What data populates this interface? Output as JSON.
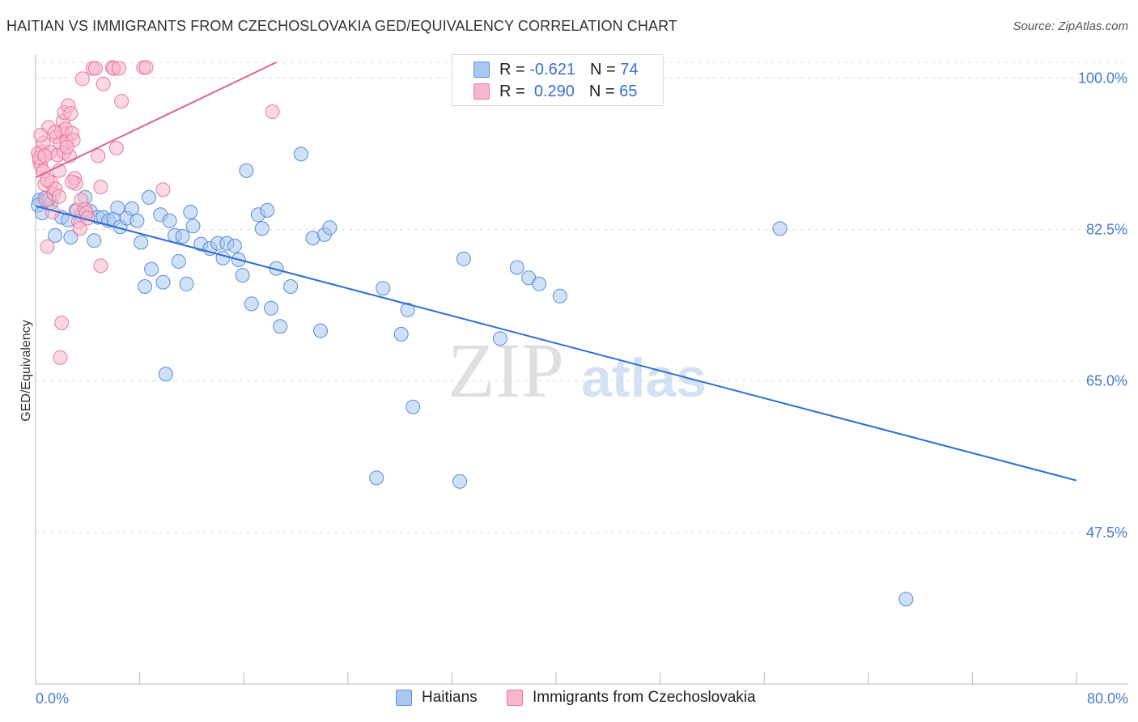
{
  "header": {
    "title": "HAITIAN VS IMMIGRANTS FROM CZECHOSLOVAKIA GED/EQUIVALENCY CORRELATION CHART",
    "source": "Source: ZipAtlas.com"
  },
  "legend": {
    "haitians": {
      "r_label": "R =",
      "r_value": "-0.621",
      "n_label": "N =",
      "n_value": "74"
    },
    "czech": {
      "r_label": "R =",
      "r_value": "0.290",
      "n_label": "N =",
      "n_value": "65"
    }
  },
  "bottom_legend": {
    "haitians": "Haitians",
    "czech": "Immigrants from Czechoslovakia"
  },
  "watermark": {
    "zip": "ZIP",
    "atlas": "atlas"
  },
  "colors": {
    "blue_fill": "#a9c7ef",
    "blue_stroke": "#5a8fd8",
    "blue_line": "#2d6fd0",
    "pink_fill": "#f6b8cb",
    "pink_stroke": "#e87a9f",
    "pink_line": "#e0608d",
    "tick_text": "#4a7bd0",
    "grid": "#dddddd"
  },
  "chart_data": {
    "type": "scatter",
    "title": "HAITIAN VS IMMIGRANTS FROM CZECHOSLOVAKIA GED/EQUIVALENCY CORRELATION CHART",
    "xlabel": "",
    "ylabel": "GED/Equivalency",
    "xlim": [
      0,
      80
    ],
    "ylim": [
      30,
      101.8
    ],
    "x_tick_labels": [
      "0.0%",
      "80.0%"
    ],
    "y_ticks": [
      100.0,
      82.5,
      65.0,
      47.5
    ],
    "y_tick_labels": [
      "100.0%",
      "82.5%",
      "65.0%",
      "47.5%"
    ],
    "series": [
      {
        "name": "Haitians",
        "color": "#a9c7ef",
        "trend": {
          "x": [
            0,
            80
          ],
          "y": [
            85.2,
            53.5
          ]
        },
        "points": [
          [
            0.3,
            85.9
          ],
          [
            0.7,
            86.1
          ],
          [
            1.2,
            85.6
          ],
          [
            1.5,
            81.8
          ],
          [
            2.0,
            83.9
          ],
          [
            2.7,
            81.6
          ],
          [
            3.1,
            84.7
          ],
          [
            3.5,
            84.2
          ],
          [
            3.8,
            86.2
          ],
          [
            4.2,
            84.6
          ],
          [
            4.5,
            81.2
          ],
          [
            4.8,
            83.9
          ],
          [
            5.2,
            83.9
          ],
          [
            5.6,
            83.5
          ],
          [
            6.0,
            83.7
          ],
          [
            6.3,
            85.0
          ],
          [
            6.5,
            82.8
          ],
          [
            7.0,
            83.8
          ],
          [
            7.4,
            84.9
          ],
          [
            7.8,
            83.5
          ],
          [
            8.1,
            81.0
          ],
          [
            8.4,
            75.9
          ],
          [
            8.7,
            86.2
          ],
          [
            8.9,
            77.9
          ],
          [
            9.6,
            84.2
          ],
          [
            9.8,
            76.4
          ],
          [
            10.0,
            65.8
          ],
          [
            10.3,
            83.5
          ],
          [
            10.7,
            81.8
          ],
          [
            11.0,
            78.8
          ],
          [
            11.3,
            81.7
          ],
          [
            11.6,
            76.2
          ],
          [
            11.9,
            84.5
          ],
          [
            12.1,
            82.9
          ],
          [
            12.7,
            80.8
          ],
          [
            13.4,
            80.3
          ],
          [
            14.0,
            80.9
          ],
          [
            14.4,
            79.2
          ],
          [
            14.7,
            80.9
          ],
          [
            15.3,
            80.6
          ],
          [
            15.6,
            79.0
          ],
          [
            15.9,
            77.2
          ],
          [
            16.2,
            89.3
          ],
          [
            16.6,
            73.9
          ],
          [
            17.1,
            84.2
          ],
          [
            17.4,
            82.6
          ],
          [
            17.8,
            84.7
          ],
          [
            18.1,
            73.4
          ],
          [
            18.5,
            78.0
          ],
          [
            18.8,
            71.3
          ],
          [
            19.6,
            75.9
          ],
          [
            20.4,
            91.2
          ],
          [
            21.3,
            81.5
          ],
          [
            21.9,
            70.8
          ],
          [
            22.2,
            81.9
          ],
          [
            22.6,
            82.7
          ],
          [
            26.2,
            53.8
          ],
          [
            26.7,
            75.7
          ],
          [
            28.1,
            70.4
          ],
          [
            28.6,
            73.2
          ],
          [
            29.0,
            62.0
          ],
          [
            32.6,
            53.4
          ],
          [
            32.9,
            79.1
          ],
          [
            35.7,
            69.9
          ],
          [
            37.0,
            78.1
          ],
          [
            37.9,
            76.9
          ],
          [
            38.7,
            76.2
          ],
          [
            40.3,
            74.8
          ],
          [
            57.2,
            82.6
          ],
          [
            66.9,
            39.8
          ],
          [
            0.2,
            85.3
          ],
          [
            0.5,
            84.4
          ],
          [
            1.0,
            86.0
          ],
          [
            2.5,
            83.6
          ]
        ]
      },
      {
        "name": "Immigrants from Czechoslovakia",
        "color": "#f6b8cb",
        "trend": {
          "x": [
            0,
            18.5
          ],
          "y": [
            88.5,
            101.8
          ]
        },
        "points": [
          [
            0.2,
            91.3
          ],
          [
            0.3,
            90.4
          ],
          [
            0.4,
            89.9
          ],
          [
            0.5,
            91.5
          ],
          [
            0.6,
            92.5
          ],
          [
            0.6,
            89.2
          ],
          [
            0.7,
            87.7
          ],
          [
            0.8,
            85.9
          ],
          [
            0.9,
            80.5
          ],
          [
            1.0,
            94.3
          ],
          [
            1.1,
            91.4
          ],
          [
            1.2,
            87.9
          ],
          [
            1.3,
            84.5
          ],
          [
            1.4,
            86.6
          ],
          [
            1.5,
            87.2
          ],
          [
            1.6,
            93.2
          ],
          [
            1.7,
            91.1
          ],
          [
            1.8,
            89.3
          ],
          [
            1.9,
            92.5
          ],
          [
            2.0,
            93.8
          ],
          [
            2.1,
            95.0
          ],
          [
            2.2,
            96.0
          ],
          [
            2.2,
            91.4
          ],
          [
            2.3,
            94.1
          ],
          [
            2.4,
            92.7
          ],
          [
            2.5,
            96.8
          ],
          [
            2.6,
            91.0
          ],
          [
            2.7,
            95.9
          ],
          [
            2.8,
            93.6
          ],
          [
            2.9,
            92.8
          ],
          [
            3.0,
            88.4
          ],
          [
            3.1,
            87.8
          ],
          [
            3.2,
            84.7
          ],
          [
            3.3,
            83.4
          ],
          [
            3.4,
            82.6
          ],
          [
            3.5,
            85.9
          ],
          [
            3.6,
            99.9
          ],
          [
            3.8,
            84.8
          ],
          [
            3.9,
            84.4
          ],
          [
            4.0,
            83.8
          ],
          [
            4.4,
            101.1
          ],
          [
            4.6,
            101.1
          ],
          [
            4.8,
            91.0
          ],
          [
            5.0,
            78.3
          ],
          [
            5.0,
            87.4
          ],
          [
            5.2,
            99.3
          ],
          [
            5.9,
            101.2
          ],
          [
            6.0,
            101.1
          ],
          [
            6.2,
            91.9
          ],
          [
            6.4,
            101.1
          ],
          [
            6.6,
            97.3
          ],
          [
            8.3,
            101.2
          ],
          [
            8.5,
            101.2
          ],
          [
            9.8,
            87.1
          ],
          [
            18.2,
            96.1
          ],
          [
            2.0,
            71.7
          ],
          [
            1.9,
            67.7
          ],
          [
            0.3,
            90.8
          ],
          [
            0.7,
            91.0
          ],
          [
            1.5,
            93.7
          ],
          [
            2.4,
            92.0
          ],
          [
            0.9,
            88.2
          ],
          [
            1.8,
            86.3
          ],
          [
            0.4,
            93.4
          ],
          [
            2.8,
            88.0
          ]
        ]
      }
    ]
  }
}
